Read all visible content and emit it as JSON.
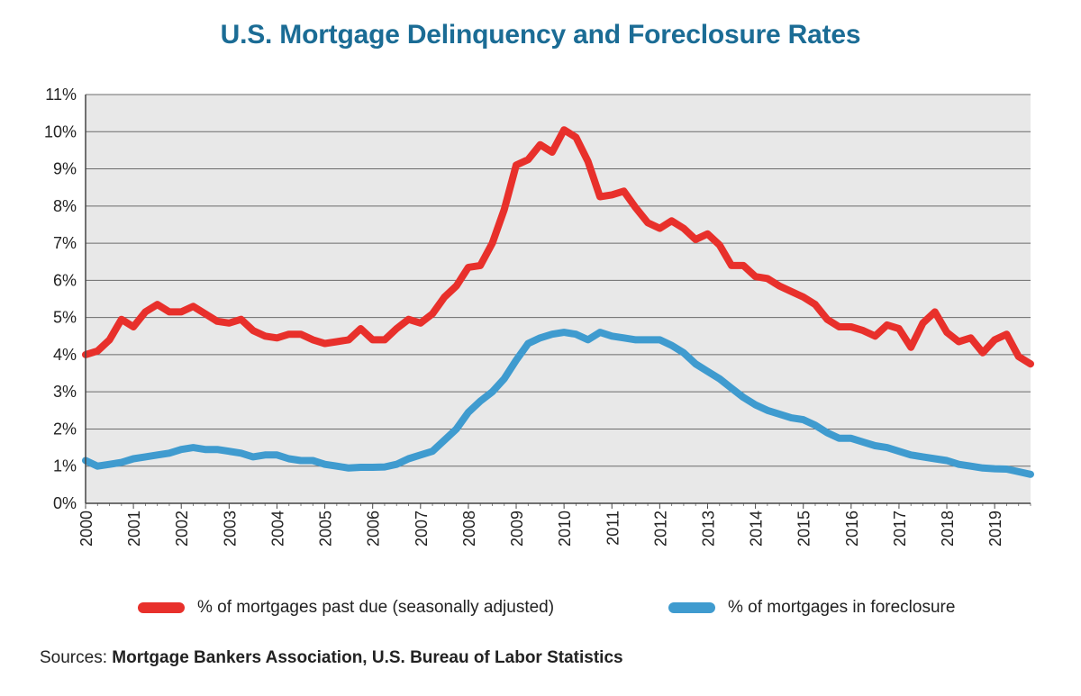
{
  "chart_data": {
    "type": "line",
    "title": "U.S. Mortgage Delinquency and Foreclosure Rates",
    "xlabel": "",
    "ylabel": "",
    "x_tick_labels": [
      "2000",
      "2001",
      "2002",
      "2003",
      "2004",
      "2005",
      "2006",
      "2007",
      "2008",
      "2009",
      "2010",
      "2011",
      "2012",
      "2013",
      "2014",
      "2015",
      "2016",
      "2017",
      "2018",
      "2019"
    ],
    "y_tick_labels": [
      "0%",
      "1%",
      "2%",
      "3%",
      "4%",
      "5%",
      "6%",
      "7%",
      "8%",
      "9%",
      "10%",
      "11%"
    ],
    "xlim": [
      2000.0,
      2019.75
    ],
    "ylim": [
      0,
      11
    ],
    "grid": true,
    "legend_position": "bottom",
    "series": [
      {
        "name": "% of mortgages past due (seasonally adjusted)",
        "color": "#e8302b",
        "x": [
          2000.0,
          2000.25,
          2000.5,
          2000.75,
          2001.0,
          2001.25,
          2001.5,
          2001.75,
          2002.0,
          2002.25,
          2002.5,
          2002.75,
          2003.0,
          2003.25,
          2003.5,
          2003.75,
          2004.0,
          2004.25,
          2004.5,
          2004.75,
          2005.0,
          2005.25,
          2005.5,
          2005.75,
          2006.0,
          2006.25,
          2006.5,
          2006.75,
          2007.0,
          2007.25,
          2007.5,
          2007.75,
          2008.0,
          2008.25,
          2008.5,
          2008.75,
          2009.0,
          2009.25,
          2009.5,
          2009.75,
          2010.0,
          2010.25,
          2010.5,
          2010.75,
          2011.0,
          2011.25,
          2011.5,
          2011.75,
          2012.0,
          2012.25,
          2012.5,
          2012.75,
          2013.0,
          2013.25,
          2013.5,
          2013.75,
          2014.0,
          2014.25,
          2014.5,
          2014.75,
          2015.0,
          2015.25,
          2015.5,
          2015.75,
          2016.0,
          2016.25,
          2016.5,
          2016.75,
          2017.0,
          2017.25,
          2017.5,
          2017.75,
          2018.0,
          2018.25,
          2018.5,
          2018.75,
          2019.0,
          2019.25,
          2019.5,
          2019.75
        ],
        "values": [
          4.0,
          4.1,
          4.4,
          4.95,
          4.75,
          5.15,
          5.35,
          5.15,
          5.15,
          5.3,
          5.1,
          4.9,
          4.85,
          4.95,
          4.65,
          4.5,
          4.45,
          4.55,
          4.55,
          4.4,
          4.3,
          4.35,
          4.4,
          4.7,
          4.4,
          4.4,
          4.7,
          4.95,
          4.85,
          5.1,
          5.55,
          5.85,
          6.35,
          6.4,
          7.0,
          7.9,
          9.1,
          9.25,
          9.65,
          9.45,
          10.05,
          9.85,
          9.2,
          8.25,
          8.3,
          8.4,
          7.95,
          7.55,
          7.4,
          7.6,
          7.4,
          7.1,
          7.25,
          6.95,
          6.4,
          6.4,
          6.1,
          6.05,
          5.85,
          5.7,
          5.55,
          5.35,
          4.95,
          4.75,
          4.75,
          4.65,
          4.5,
          4.8,
          4.7,
          4.2,
          4.85,
          5.15,
          4.6,
          4.35,
          4.45,
          4.05,
          4.4,
          4.55,
          3.95,
          3.75
        ]
      },
      {
        "name": "% of mortgages in foreclosure",
        "color": "#3f9bcf",
        "x": [
          2000.0,
          2000.25,
          2000.5,
          2000.75,
          2001.0,
          2001.25,
          2001.5,
          2001.75,
          2002.0,
          2002.25,
          2002.5,
          2002.75,
          2003.0,
          2003.25,
          2003.5,
          2003.75,
          2004.0,
          2004.25,
          2004.5,
          2004.75,
          2005.0,
          2005.25,
          2005.5,
          2005.75,
          2006.0,
          2006.25,
          2006.5,
          2006.75,
          2007.0,
          2007.25,
          2007.5,
          2007.75,
          2008.0,
          2008.25,
          2008.5,
          2008.75,
          2009.0,
          2009.25,
          2009.5,
          2009.75,
          2010.0,
          2010.25,
          2010.5,
          2010.75,
          2011.0,
          2011.25,
          2011.5,
          2011.75,
          2012.0,
          2012.25,
          2012.5,
          2012.75,
          2013.0,
          2013.25,
          2013.5,
          2013.75,
          2014.0,
          2014.25,
          2014.5,
          2014.75,
          2015.0,
          2015.25,
          2015.5,
          2015.75,
          2016.0,
          2016.25,
          2016.5,
          2016.75,
          2017.0,
          2017.25,
          2017.5,
          2017.75,
          2018.0,
          2018.25,
          2018.5,
          2018.75,
          2019.0,
          2019.25,
          2019.5,
          2019.75
        ],
        "values": [
          1.15,
          1.0,
          1.05,
          1.1,
          1.2,
          1.25,
          1.3,
          1.35,
          1.45,
          1.5,
          1.45,
          1.45,
          1.4,
          1.35,
          1.25,
          1.3,
          1.3,
          1.2,
          1.15,
          1.15,
          1.05,
          1.0,
          0.95,
          0.97,
          0.97,
          0.98,
          1.05,
          1.2,
          1.3,
          1.4,
          1.7,
          2.0,
          2.45,
          2.75,
          3.0,
          3.35,
          3.85,
          4.3,
          4.45,
          4.55,
          4.6,
          4.55,
          4.4,
          4.6,
          4.5,
          4.45,
          4.4,
          4.4,
          4.4,
          4.25,
          4.05,
          3.75,
          3.55,
          3.35,
          3.1,
          2.85,
          2.65,
          2.5,
          2.4,
          2.3,
          2.25,
          2.1,
          1.9,
          1.75,
          1.75,
          1.65,
          1.55,
          1.5,
          1.4,
          1.3,
          1.25,
          1.2,
          1.15,
          1.05,
          1.0,
          0.95,
          0.93,
          0.92,
          0.85,
          0.78
        ]
      }
    ]
  },
  "sources": {
    "prefix": "Sources:",
    "text": "Mortgage Bankers Association, U.S. Bureau of Labor Statistics"
  }
}
